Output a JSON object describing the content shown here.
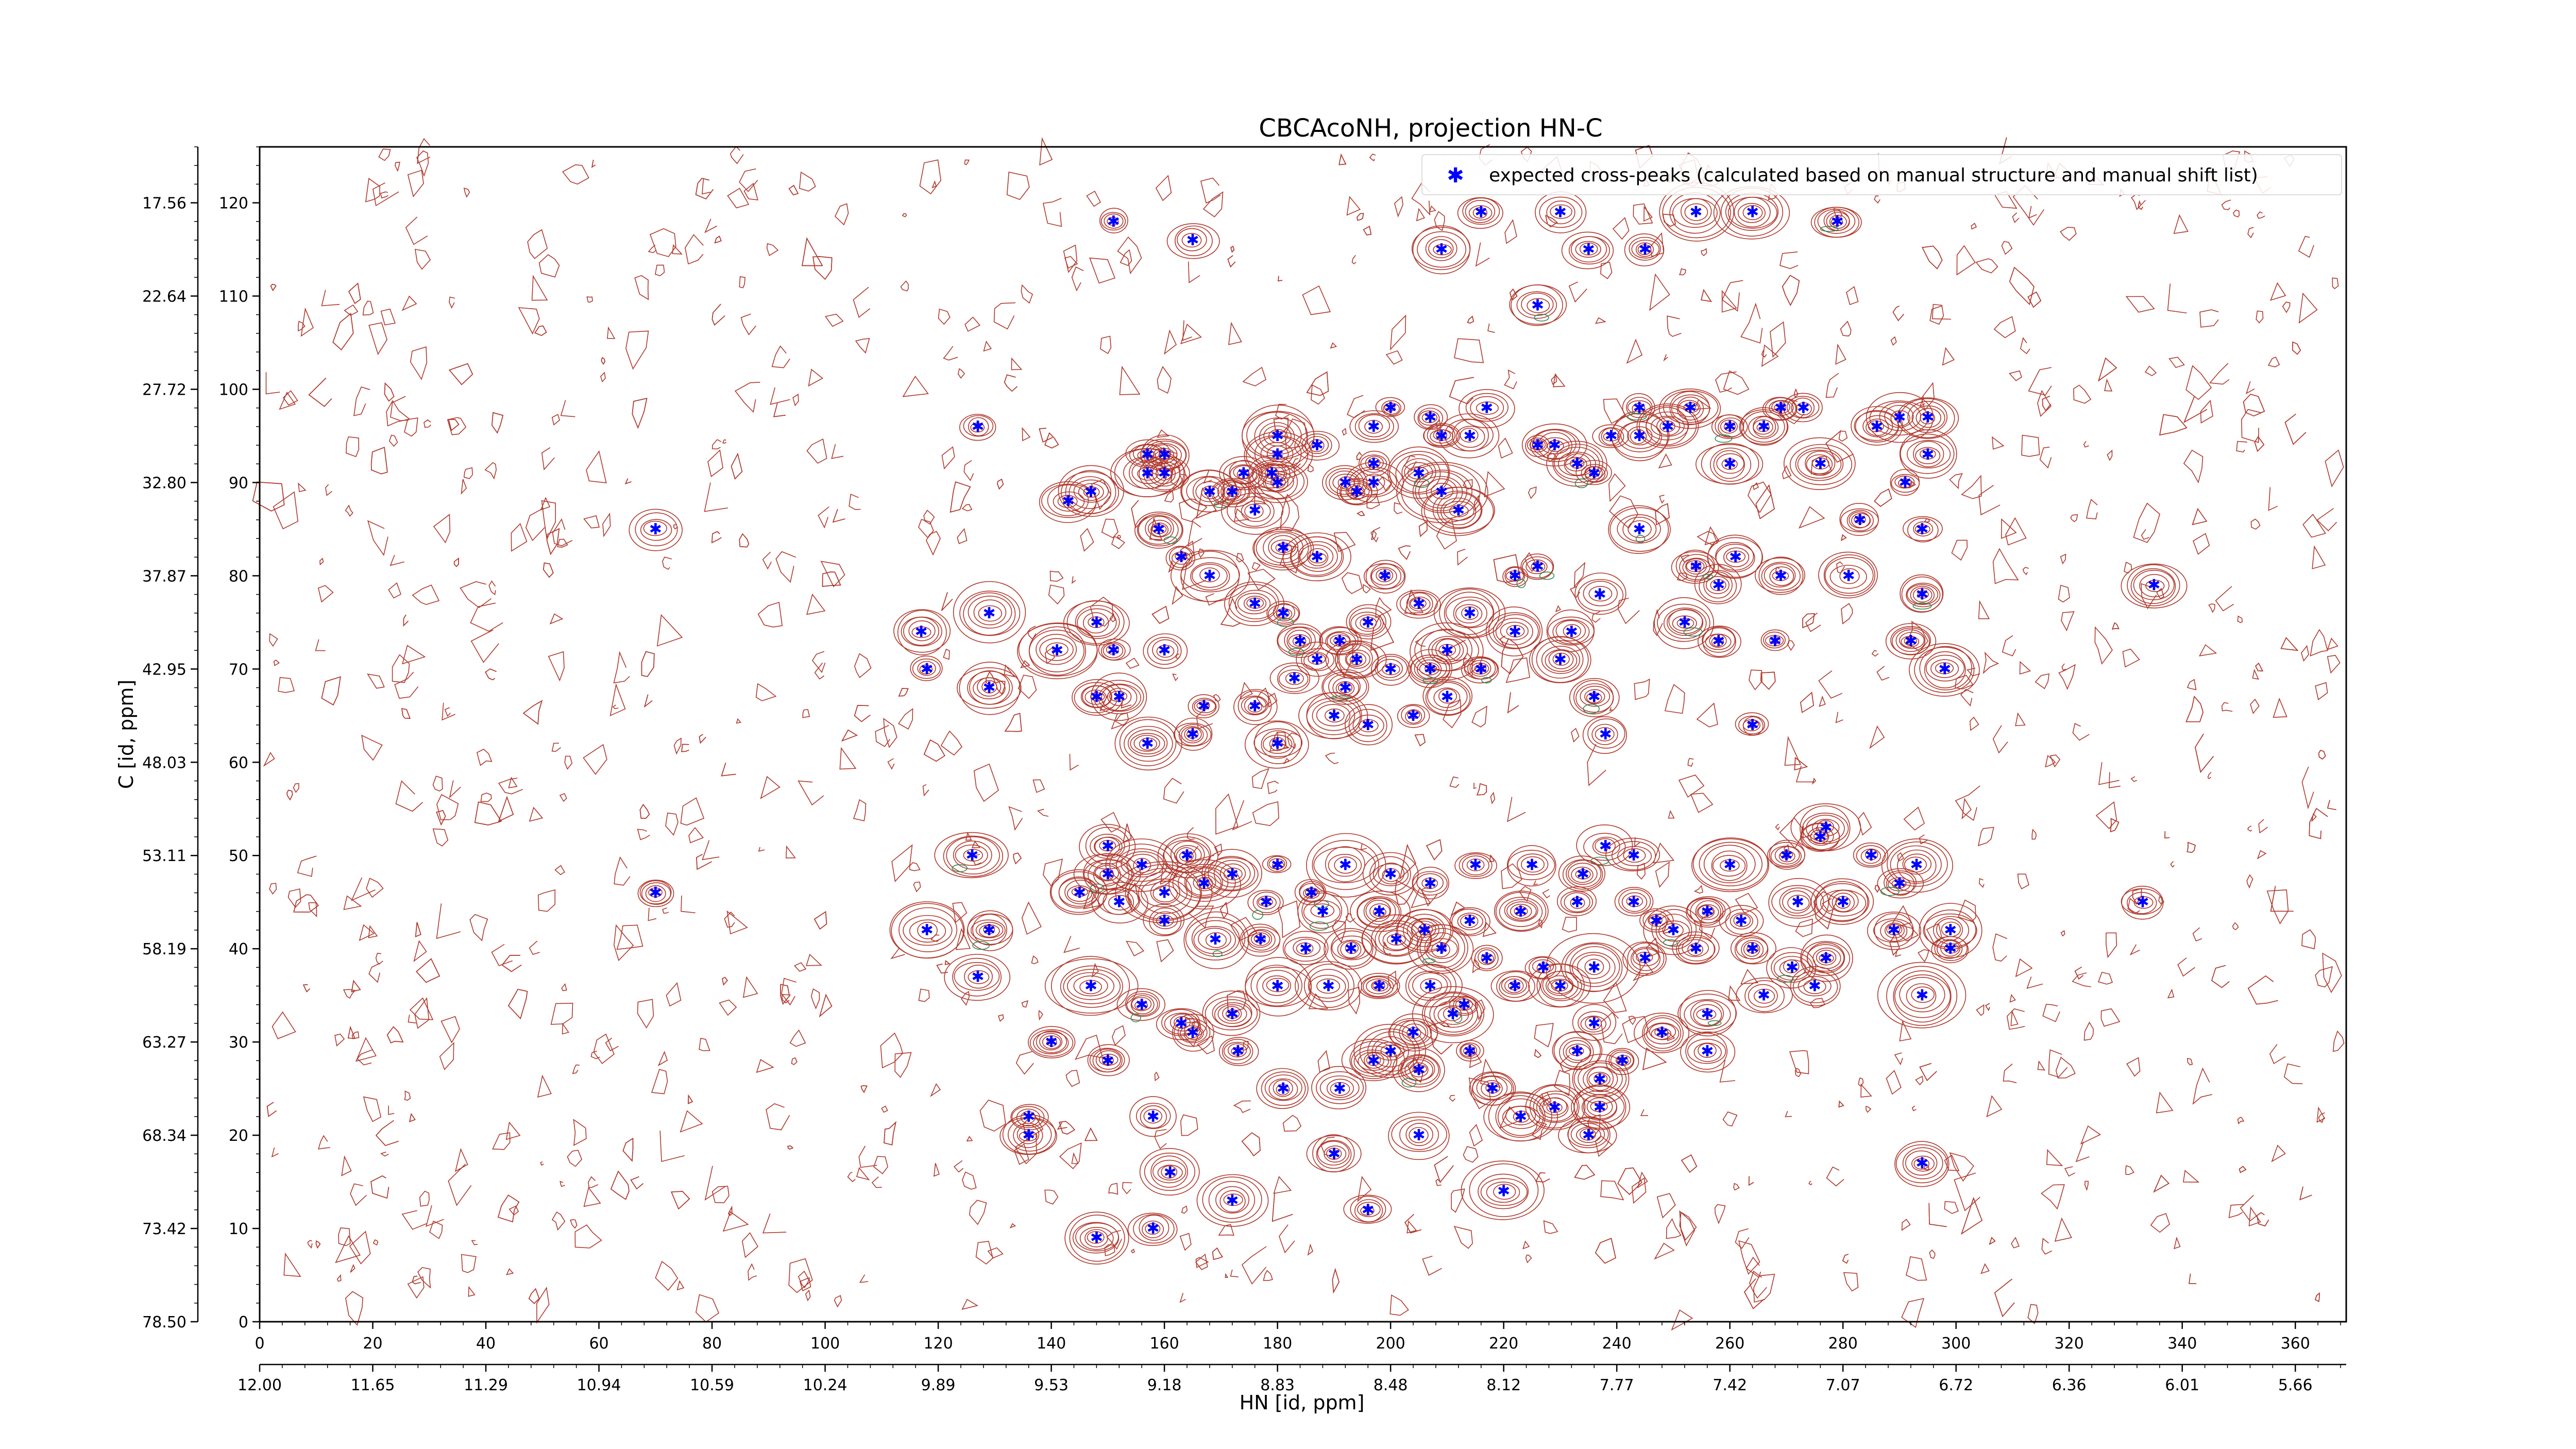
{
  "chart_data": {
    "type": "scatter",
    "title": "CBCAcoNH, projection HN-C",
    "xlabel": "HN [id, ppm]",
    "ylabel": "C [id, ppm]",
    "x_index_range": [
      0,
      369
    ],
    "y_index_range": [
      0,
      126
    ],
    "x_index_ticks": [
      "0",
      "20",
      "40",
      "60",
      "80",
      "100",
      "120",
      "140",
      "160",
      "180",
      "200",
      "220",
      "240",
      "260",
      "280",
      "300",
      "320",
      "340",
      "360"
    ],
    "x_ppm_ticks": [
      "12.00",
      "11.65",
      "11.29",
      "10.94",
      "10.59",
      "10.24",
      "9.89",
      "9.53",
      "9.18",
      "8.83",
      "8.48",
      "8.12",
      "7.77",
      "7.42",
      "7.07",
      "6.72",
      "6.36",
      "6.01",
      "5.66"
    ],
    "y_index_ticks": [
      "0",
      "10",
      "20",
      "30",
      "40",
      "50",
      "60",
      "70",
      "80",
      "90",
      "100",
      "110",
      "120"
    ],
    "y_ppm_ticks": [
      "78.50",
      "73.42",
      "68.34",
      "63.27",
      "58.19",
      "53.11",
      "48.03",
      "42.95",
      "37.87",
      "32.80",
      "27.72",
      "22.64",
      "17.56"
    ],
    "legend": {
      "label": "expected cross-peaks (calculated based on manual structure and manual shift list)",
      "placement": "top-right"
    },
    "colors": {
      "points": "#0000ff",
      "contour_main": "#b03a2e",
      "contour_alt": "#2e8b57",
      "frame": "#000000"
    },
    "series": [
      {
        "name": "expected cross-peaks (calculated based on manual structure and manual shift list)",
        "points": [
          [
            151,
            118
          ],
          [
            165,
            116
          ],
          [
            216,
            119
          ],
          [
            230,
            119
          ],
          [
            235,
            115
          ],
          [
            245,
            115
          ],
          [
            254,
            119
          ],
          [
            264,
            119
          ],
          [
            279,
            118
          ],
          [
            226,
            109
          ],
          [
            209,
            115
          ],
          [
            127,
            96
          ],
          [
            70,
            85
          ],
          [
            70,
            46
          ],
          [
            126,
            50
          ],
          [
            143,
            88
          ],
          [
            147,
            89
          ],
          [
            157,
            93
          ],
          [
            160,
            93
          ],
          [
            157,
            91
          ],
          [
            160,
            91
          ],
          [
            168,
            89
          ],
          [
            172,
            89
          ],
          [
            174,
            91
          ],
          [
            180,
            95
          ],
          [
            180,
            93
          ],
          [
            179,
            91
          ],
          [
            180,
            90
          ],
          [
            187,
            94
          ],
          [
            194,
            89
          ],
          [
            192,
            90
          ],
          [
            197,
            90
          ],
          [
            197,
            92
          ],
          [
            197,
            96
          ],
          [
            200,
            98
          ],
          [
            207,
            97
          ],
          [
            209,
            95
          ],
          [
            205,
            91
          ],
          [
            209,
            89
          ],
          [
            212,
            87
          ],
          [
            214,
            95
          ],
          [
            217,
            98
          ],
          [
            226,
            94
          ],
          [
            229,
            94
          ],
          [
            233,
            92
          ],
          [
            236,
            91
          ],
          [
            239,
            95
          ],
          [
            244,
            95
          ],
          [
            244,
            85
          ],
          [
            244,
            98
          ],
          [
            249,
            96
          ],
          [
            253,
            98
          ],
          [
            260,
            96
          ],
          [
            260,
            92
          ],
          [
            266,
            96
          ],
          [
            269,
            98
          ],
          [
            273,
            98
          ],
          [
            276,
            92
          ],
          [
            286,
            96
          ],
          [
            290,
            97
          ],
          [
            295,
            97
          ],
          [
            295,
            93
          ],
          [
            294,
            85
          ],
          [
            283,
            86
          ],
          [
            291,
            90
          ],
          [
            159,
            85
          ],
          [
            163,
            82
          ],
          [
            176,
            87
          ],
          [
            181,
            83
          ],
          [
            187,
            82
          ],
          [
            168,
            80
          ],
          [
            176,
            77
          ],
          [
            181,
            76
          ],
          [
            184,
            73
          ],
          [
            191,
            73
          ],
          [
            196,
            75
          ],
          [
            199,
            80
          ],
          [
            205,
            77
          ],
          [
            214,
            76
          ],
          [
            222,
            80
          ],
          [
            226,
            81
          ],
          [
            237,
            78
          ],
          [
            232,
            74
          ],
          [
            222,
            74
          ],
          [
            210,
            72
          ],
          [
            216,
            70
          ],
          [
            210,
            67
          ],
          [
            204,
            65
          ],
          [
            196,
            64
          ],
          [
            190,
            65
          ],
          [
            180,
            62
          ],
          [
            165,
            63
          ],
          [
            151,
            72
          ],
          [
            148,
            67
          ],
          [
            141,
            72
          ],
          [
            129,
            76
          ],
          [
            129,
            68
          ],
          [
            118,
            70
          ],
          [
            117,
            74
          ],
          [
            148,
            75
          ],
          [
            152,
            67
          ],
          [
            157,
            62
          ],
          [
            167,
            66
          ],
          [
            160,
            72
          ],
          [
            176,
            66
          ],
          [
            183,
            69
          ],
          [
            187,
            71
          ],
          [
            194,
            71
          ],
          [
            200,
            70
          ],
          [
            192,
            68
          ],
          [
            207,
            70
          ],
          [
            230,
            71
          ],
          [
            236,
            67
          ],
          [
            238,
            63
          ],
          [
            264,
            64
          ],
          [
            258,
            73
          ],
          [
            268,
            73
          ],
          [
            252,
            75
          ],
          [
            258,
            79
          ],
          [
            254,
            81
          ],
          [
            261,
            82
          ],
          [
            269,
            80
          ],
          [
            281,
            80
          ],
          [
            294,
            78
          ],
          [
            292,
            73
          ],
          [
            298,
            70
          ],
          [
            335,
            79
          ],
          [
            276,
            52
          ],
          [
            285,
            50
          ],
          [
            290,
            47
          ],
          [
            293,
            49
          ],
          [
            260,
            49
          ],
          [
            270,
            50
          ],
          [
            277,
            53
          ],
          [
            243,
            50
          ],
          [
            238,
            51
          ],
          [
            234,
            48
          ],
          [
            225,
            49
          ],
          [
            215,
            49
          ],
          [
            207,
            47
          ],
          [
            200,
            48
          ],
          [
            192,
            49
          ],
          [
            186,
            46
          ],
          [
            180,
            49
          ],
          [
            172,
            48
          ],
          [
            164,
            50
          ],
          [
            156,
            49
          ],
          [
            150,
            51
          ],
          [
            150,
            48
          ],
          [
            160,
            46
          ],
          [
            167,
            47
          ],
          [
            178,
            45
          ],
          [
            188,
            44
          ],
          [
            198,
            44
          ],
          [
            206,
            42
          ],
          [
            214,
            43
          ],
          [
            223,
            44
          ],
          [
            233,
            45
          ],
          [
            243,
            45
          ],
          [
            247,
            43
          ],
          [
            250,
            42
          ],
          [
            256,
            44
          ],
          [
            262,
            43
          ],
          [
            272,
            45
          ],
          [
            280,
            45
          ],
          [
            289,
            42
          ],
          [
            299,
            42
          ],
          [
            299,
            40
          ],
          [
            294,
            35
          ],
          [
            275,
            36
          ],
          [
            264,
            40
          ],
          [
            271,
            38
          ],
          [
            254,
            40
          ],
          [
            245,
            39
          ],
          [
            236,
            38
          ],
          [
            227,
            38
          ],
          [
            217,
            39
          ],
          [
            209,
            40
          ],
          [
            201,
            41
          ],
          [
            193,
            40
          ],
          [
            185,
            40
          ],
          [
            177,
            41
          ],
          [
            169,
            41
          ],
          [
            160,
            43
          ],
          [
            152,
            45
          ],
          [
            145,
            46
          ],
          [
            118,
            42
          ],
          [
            129,
            42
          ],
          [
            127,
            37
          ],
          [
            147,
            36
          ],
          [
            156,
            34
          ],
          [
            163,
            32
          ],
          [
            172,
            33
          ],
          [
            180,
            36
          ],
          [
            189,
            36
          ],
          [
            198,
            36
          ],
          [
            207,
            36
          ],
          [
            213,
            34
          ],
          [
            222,
            36
          ],
          [
            230,
            36
          ],
          [
            236,
            32
          ],
          [
            241,
            28
          ],
          [
            248,
            31
          ],
          [
            256,
            33
          ],
          [
            266,
            35
          ],
          [
            277,
            39
          ],
          [
            256,
            29
          ],
          [
            237,
            23
          ],
          [
            229,
            23
          ],
          [
            218,
            25
          ],
          [
            205,
            27
          ],
          [
            197,
            28
          ],
          [
            191,
            25
          ],
          [
            181,
            25
          ],
          [
            173,
            29
          ],
          [
            165,
            31
          ],
          [
            150,
            28
          ],
          [
            140,
            30
          ],
          [
            136,
            22
          ],
          [
            136,
            20
          ],
          [
            158,
            22
          ],
          [
            161,
            16
          ],
          [
            158,
            10
          ],
          [
            148,
            9
          ],
          [
            172,
            13
          ],
          [
            190,
            18
          ],
          [
            196,
            12
          ],
          [
            205,
            20
          ],
          [
            220,
            14
          ],
          [
            223,
            22
          ],
          [
            235,
            20
          ],
          [
            237,
            26
          ],
          [
            233,
            29
          ],
          [
            294,
            17
          ],
          [
            333,
            45
          ],
          [
            200,
            29
          ],
          [
            214,
            29
          ],
          [
            204,
            31
          ],
          [
            211,
            33
          ]
        ]
      }
    ]
  }
}
